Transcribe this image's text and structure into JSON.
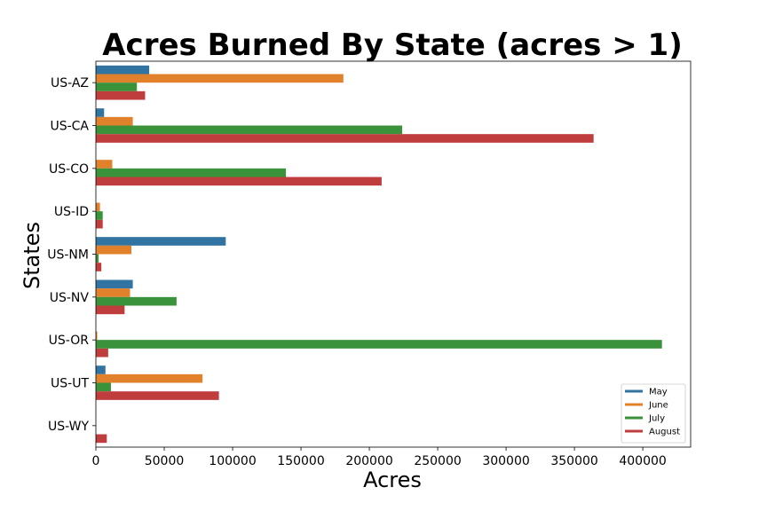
{
  "chart_data": {
    "type": "bar",
    "orientation": "horizontal",
    "title": "Acres Burned By State (acres > 1)",
    "xlabel": "Acres",
    "ylabel": "States",
    "categories": [
      "US-AZ",
      "US-CA",
      "US-CO",
      "US-ID",
      "US-NM",
      "US-NV",
      "US-OR",
      "US-UT",
      "US-WY"
    ],
    "xlim": [
      0,
      435000
    ],
    "xticks": [
      0,
      50000,
      100000,
      150000,
      200000,
      250000,
      300000,
      350000,
      400000
    ],
    "grid": false,
    "legend_position": "lower-right",
    "series": [
      {
        "name": "May",
        "color": "#3274a1",
        "values": [
          39000,
          6000,
          0,
          0,
          95000,
          27000,
          0,
          7000,
          0
        ]
      },
      {
        "name": "June",
        "color": "#e1812c",
        "values": [
          181000,
          27000,
          12000,
          3000,
          26000,
          25000,
          1000,
          78000,
          0
        ]
      },
      {
        "name": "July",
        "color": "#3a923a",
        "values": [
          30000,
          224000,
          139000,
          5000,
          2000,
          59000,
          414000,
          11000,
          0
        ]
      },
      {
        "name": "August",
        "color": "#c03d3e",
        "values": [
          36000,
          364000,
          209000,
          5000,
          4000,
          21000,
          9000,
          90000,
          8000
        ]
      }
    ]
  }
}
